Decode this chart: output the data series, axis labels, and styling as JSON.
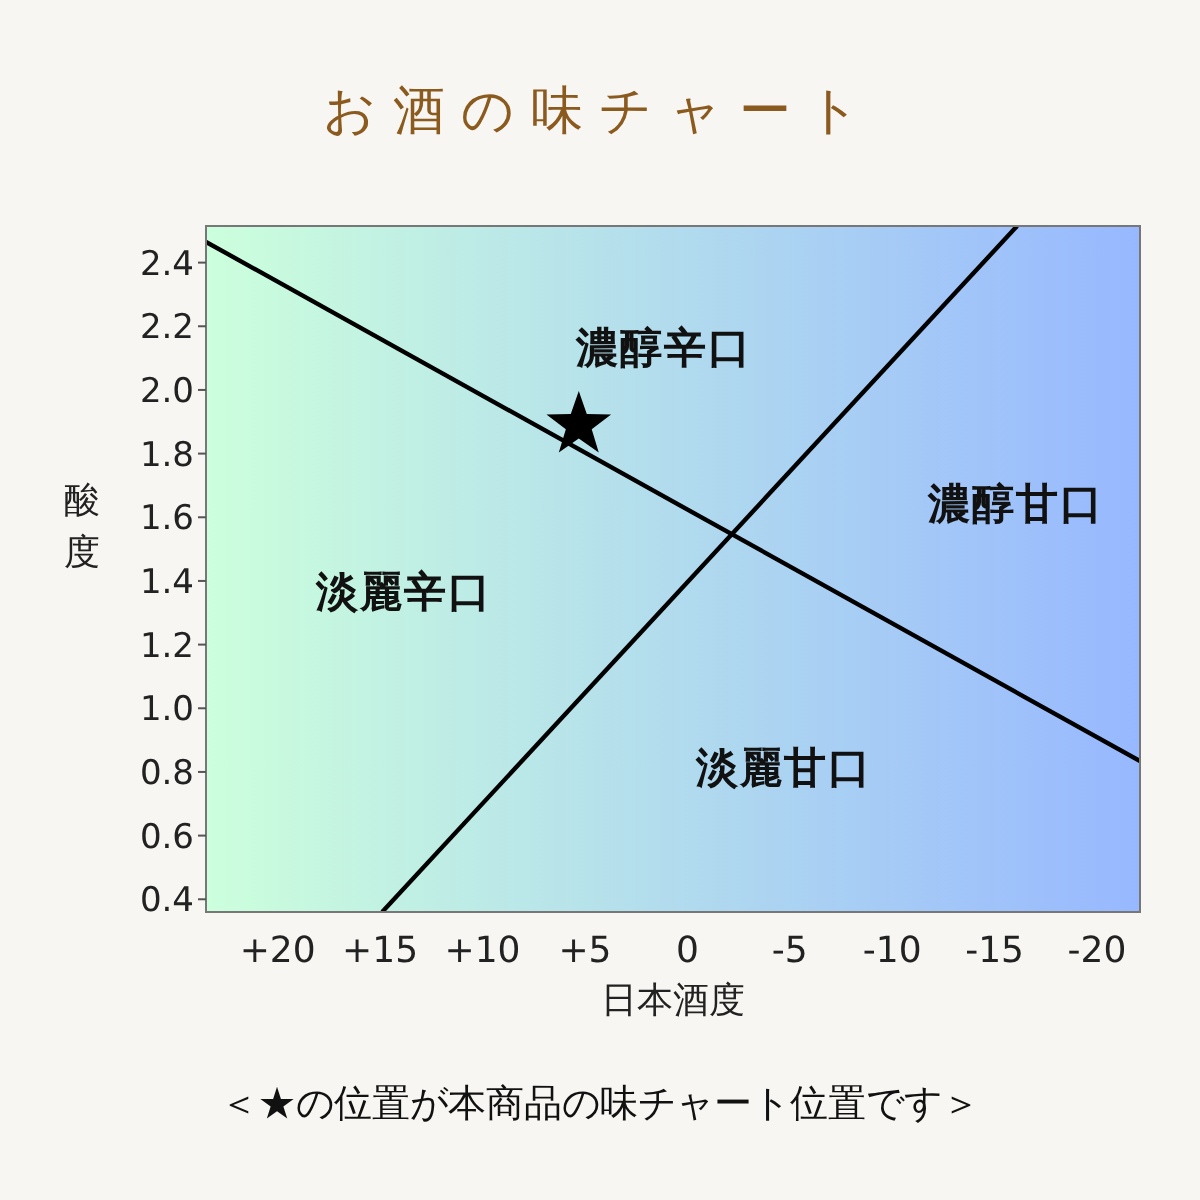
{
  "chart_data": {
    "type": "scatter",
    "title": "お酒の味チャート",
    "xlabel": "日本酒度",
    "ylabel": "酸度",
    "xlim": [
      23.5,
      -22.1
    ],
    "ylim": [
      0.36,
      2.515
    ],
    "xticks": [
      {
        "value": 20,
        "label": "+20"
      },
      {
        "value": 15,
        "label": "+15"
      },
      {
        "value": 10,
        "label": "+10"
      },
      {
        "value": 5,
        "label": "+5"
      },
      0,
      -5,
      -10,
      -15,
      -20
    ],
    "yticks": [
      0.4,
      0.6,
      0.8,
      {
        "value": 1,
        "label": "1.0"
      },
      1.2,
      1.4,
      1.6,
      1.8,
      {
        "value": 2,
        "label": "2.0"
      },
      2.2,
      2.4
    ],
    "series": [
      {
        "type": "line",
        "color": "#000000",
        "line_style": "solid",
        "marker": "none",
        "x": [
          23.5,
          -22.1
        ],
        "values": [
          2.465,
          0.834
        ]
      },
      {
        "type": "line",
        "color": "#000000",
        "line_style": "solid",
        "marker": "none",
        "x": [
          14.9,
          -16.1
        ],
        "values": [
          0.36,
          2.515
        ]
      },
      {
        "type": "scatter",
        "color": "#000000",
        "marker": "star",
        "x": [
          5.3
        ],
        "values": [
          1.89
        ]
      }
    ],
    "annotations": [
      "濃醇辛口",
      "濃醇甘口",
      "淡麗辛口",
      "淡麗甘口",
      "＜★の位置が本商品の味チャート位置です＞"
    ]
  }
}
